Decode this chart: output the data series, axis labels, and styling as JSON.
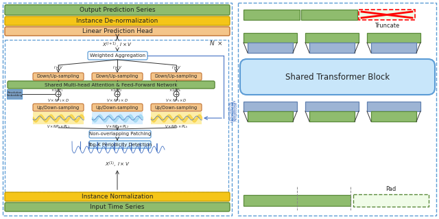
{
  "bg": "#ffffff",
  "dash_ec": "#5B9BD5",
  "left": {
    "output_fc": "#8FBC6E",
    "output_ec": "#5a8a3a",
    "output_text": "Output Prediction Series",
    "denorm_fc": "#F5C518",
    "denorm_ec": "#c9a000",
    "denorm_text": "Instance De-normalization",
    "linear_fc": "#F4C58A",
    "linear_ec": "#c07030",
    "linear_text": "Linear Prediction Head",
    "wa_text": "Weighted Aggregation",
    "du_fc": "#F4C58A",
    "du_ec": "#c07030",
    "du_text": "Down/Up-sampling",
    "mha_fc": "#8FBC6E",
    "mha_ec": "#5a8a3a",
    "mha_text": "Shared Multi-head Attention & Feed-Forward Network",
    "ud_fc": "#F4C58A",
    "ud_ec": "#c07030",
    "ud_text": "Up/Down-sampling",
    "nop_text": "Non-overlapping Patching",
    "topk_fc": "#DAF0FF",
    "topk_ec": "#5B9BD5",
    "topk_text": "Top-K Periodicity Detection",
    "inorm_fc": "#F5C518",
    "inorm_ec": "#c9a000",
    "inorm_text": "Instance Normalization",
    "input_fc": "#8FBC6E",
    "input_ec": "#5a8a3a",
    "input_text": "Input Time Series",
    "res_fc": "#7B9FC4",
    "res_ec": "#5B9BD5"
  },
  "right": {
    "tr_fc": "#C8E6FA",
    "tr_ec": "#5B9BD5",
    "tr_text": "Shared Transformer Block",
    "green_fc": "#8FBC6E",
    "green_ec": "#5a8a3a",
    "blue_fc": "#9DB4D4",
    "blue_ec": "#6080b0"
  }
}
